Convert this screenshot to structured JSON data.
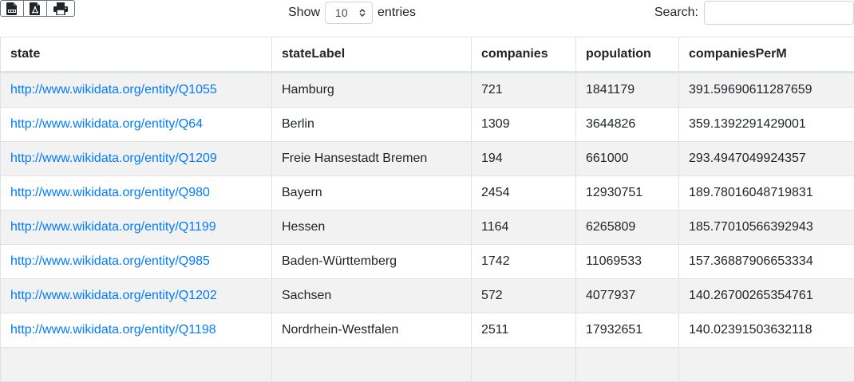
{
  "toolbar": {
    "csv_icon": "csv-file-icon",
    "pdf_icon": "pdf-file-icon",
    "print_icon": "print-icon"
  },
  "length": {
    "show_label": "Show",
    "value": "10",
    "entries_label": "entries"
  },
  "search": {
    "label": "Search:",
    "value": ""
  },
  "table": {
    "headers": [
      "state",
      "stateLabel",
      "companies",
      "population",
      "companiesPerM"
    ],
    "rows": [
      [
        "http://www.wikidata.org/entity/Q1055",
        "Hamburg",
        "721",
        "1841179",
        "391.59690611287659"
      ],
      [
        "http://www.wikidata.org/entity/Q64",
        "Berlin",
        "1309",
        "3644826",
        "359.1392291429001"
      ],
      [
        "http://www.wikidata.org/entity/Q1209",
        "Freie Hansestadt Bremen",
        "194",
        "661000",
        "293.4947049924357"
      ],
      [
        "http://www.wikidata.org/entity/Q980",
        "Bayern",
        "2454",
        "12930751",
        "189.78016048719831"
      ],
      [
        "http://www.wikidata.org/entity/Q1199",
        "Hessen",
        "1164",
        "6265809",
        "185.77010566392943"
      ],
      [
        "http://www.wikidata.org/entity/Q985",
        "Baden-Württemberg",
        "1742",
        "11069533",
        "157.36887906653334"
      ],
      [
        "http://www.wikidata.org/entity/Q1202",
        "Sachsen",
        "572",
        "4077937",
        "140.26700265354761"
      ],
      [
        "http://www.wikidata.org/entity/Q1198",
        "Nordrhein-Westfalen",
        "2511",
        "17932651",
        "140.02391503632118"
      ]
    ]
  },
  "colors": {
    "link": "#007bff",
    "stripe": "#f2f2f2",
    "border": "#dee2e6"
  }
}
